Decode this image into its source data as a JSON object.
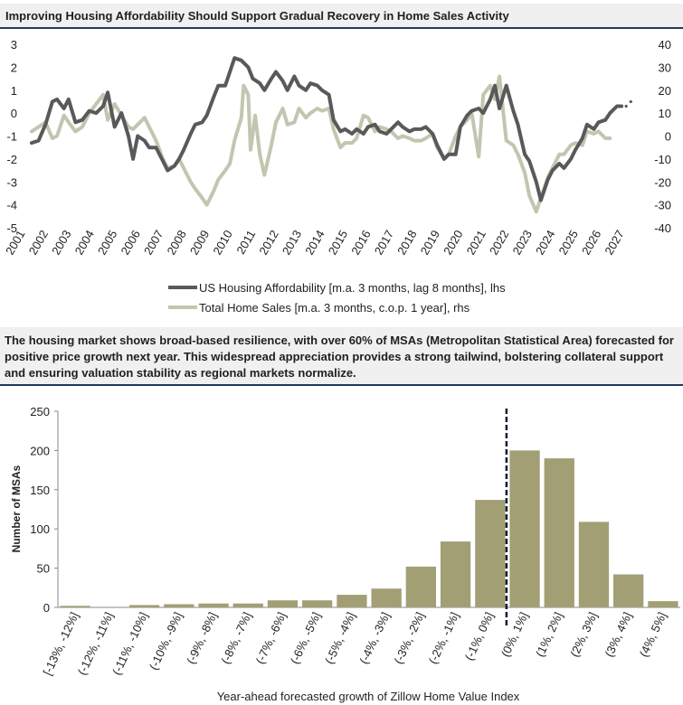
{
  "chart_data": [
    {
      "type": "line",
      "title": "Improving Housing Affordability Should Support Gradual Recovery in Home Sales Activity",
      "x_ticks": [
        "2001",
        "2002",
        "2003",
        "2004",
        "2005",
        "2006",
        "2007",
        "2008",
        "2009",
        "2010",
        "2011",
        "2012",
        "2013",
        "2014",
        "2015",
        "2016",
        "2017",
        "2018",
        "2019",
        "2020",
        "2021",
        "2022",
        "2023",
        "2024",
        "2025",
        "2026",
        "2027"
      ],
      "y_left": {
        "range": [
          -5,
          3
        ],
        "ticks": [
          "3",
          "2",
          "1",
          "0",
          "-1",
          "-2",
          "-3",
          "-4",
          "-5"
        ]
      },
      "y_right": {
        "range": [
          -40,
          40
        ],
        "ticks": [
          "40",
          "30",
          "20",
          "10",
          "0",
          "-10",
          "-20",
          "-30",
          "-40"
        ]
      },
      "legend_placement": "bottom",
      "series": [
        {
          "name": "US Housing Affordability [m.a. 3 months, lag 8 months], lhs",
          "axis": "left",
          "color": "#595959",
          "points": [
            [
              2001.0,
              -1.3
            ],
            [
              2001.3,
              -1.2
            ],
            [
              2001.6,
              -0.5
            ],
            [
              2001.9,
              0.5
            ],
            [
              2002.1,
              0.6
            ],
            [
              2002.4,
              0.2
            ],
            [
              2002.6,
              0.6
            ],
            [
              2002.9,
              -0.4
            ],
            [
              2003.2,
              -0.3
            ],
            [
              2003.5,
              0.1
            ],
            [
              2003.8,
              0.0
            ],
            [
              2004.1,
              0.3
            ],
            [
              2004.3,
              0.9
            ],
            [
              2004.6,
              -0.6
            ],
            [
              2004.9,
              0.0
            ],
            [
              2005.2,
              -1.0
            ],
            [
              2005.4,
              -2.0
            ],
            [
              2005.6,
              -1.0
            ],
            [
              2005.9,
              -1.2
            ],
            [
              2006.1,
              -1.5
            ],
            [
              2006.4,
              -1.5
            ],
            [
              2006.7,
              -2.1
            ],
            [
              2006.9,
              -2.5
            ],
            [
              2007.2,
              -2.3
            ],
            [
              2007.4,
              -2.0
            ],
            [
              2007.6,
              -1.6
            ],
            [
              2007.9,
              -0.9
            ],
            [
              2008.1,
              -0.5
            ],
            [
              2008.4,
              -0.4
            ],
            [
              2008.6,
              -0.1
            ],
            [
              2008.9,
              0.7
            ],
            [
              2009.1,
              1.2
            ],
            [
              2009.4,
              1.2
            ],
            [
              2009.6,
              1.8
            ],
            [
              2009.8,
              2.4
            ],
            [
              2010.1,
              2.3
            ],
            [
              2010.4,
              2.0
            ],
            [
              2010.6,
              1.5
            ],
            [
              2010.9,
              1.3
            ],
            [
              2011.1,
              1.0
            ],
            [
              2011.4,
              1.5
            ],
            [
              2011.6,
              1.8
            ],
            [
              2011.9,
              1.4
            ],
            [
              2012.1,
              1.0
            ],
            [
              2012.4,
              1.6
            ],
            [
              2012.6,
              1.2
            ],
            [
              2012.9,
              1.0
            ],
            [
              2013.1,
              1.3
            ],
            [
              2013.4,
              1.2
            ],
            [
              2013.6,
              1.0
            ],
            [
              2013.9,
              0.8
            ],
            [
              2014.1,
              -0.3
            ],
            [
              2014.4,
              -0.8
            ],
            [
              2014.6,
              -0.7
            ],
            [
              2014.9,
              -0.9
            ],
            [
              2015.1,
              -0.7
            ],
            [
              2015.4,
              -0.9
            ],
            [
              2015.6,
              -0.6
            ],
            [
              2015.9,
              -0.5
            ],
            [
              2016.1,
              -0.8
            ],
            [
              2016.4,
              -0.9
            ],
            [
              2016.7,
              -0.6
            ],
            [
              2016.9,
              -0.4
            ],
            [
              2017.1,
              -0.6
            ],
            [
              2017.4,
              -0.8
            ],
            [
              2017.6,
              -0.7
            ],
            [
              2017.9,
              -0.7
            ],
            [
              2018.1,
              -0.6
            ],
            [
              2018.4,
              -0.9
            ],
            [
              2018.6,
              -1.4
            ],
            [
              2018.9,
              -2.0
            ],
            [
              2019.1,
              -1.8
            ],
            [
              2019.4,
              -1.8
            ],
            [
              2019.6,
              -0.6
            ],
            [
              2019.9,
              -0.1
            ],
            [
              2020.1,
              0.1
            ],
            [
              2020.4,
              0.2
            ],
            [
              2020.6,
              0.0
            ],
            [
              2020.9,
              0.6
            ],
            [
              2021.1,
              1.2
            ],
            [
              2021.3,
              0.2
            ],
            [
              2021.6,
              1.2
            ],
            [
              2021.9,
              0.1
            ],
            [
              2022.1,
              -0.5
            ],
            [
              2022.4,
              -1.8
            ],
            [
              2022.6,
              -2.1
            ],
            [
              2022.9,
              -3.0
            ],
            [
              2023.1,
              -3.8
            ],
            [
              2023.4,
              -2.9
            ],
            [
              2023.6,
              -2.5
            ],
            [
              2023.9,
              -2.2
            ],
            [
              2024.1,
              -2.4
            ],
            [
              2024.4,
              -2.0
            ],
            [
              2024.6,
              -1.6
            ],
            [
              2024.9,
              -1.1
            ],
            [
              2025.1,
              -0.5
            ],
            [
              2025.4,
              -0.7
            ],
            [
              2025.6,
              -0.4
            ],
            [
              2025.9,
              -0.3
            ],
            [
              2026.1,
              0.0
            ],
            [
              2026.4,
              0.3
            ],
            [
              2026.6,
              0.3
            ]
          ]
        },
        {
          "name": "Total Home Sales [m.a. 3 months, c.o.p. 1 year], rhs",
          "axis": "right",
          "color": "#c2c6b0",
          "points": [
            [
              2001.0,
              2
            ],
            [
              2001.3,
              4
            ],
            [
              2001.6,
              6
            ],
            [
              2001.9,
              -1
            ],
            [
              2002.1,
              0
            ],
            [
              2002.4,
              9
            ],
            [
              2002.6,
              6
            ],
            [
              2002.9,
              2
            ],
            [
              2003.2,
              4
            ],
            [
              2003.5,
              10
            ],
            [
              2003.8,
              14
            ],
            [
              2004.1,
              18
            ],
            [
              2004.3,
              7
            ],
            [
              2004.6,
              14
            ],
            [
              2004.9,
              9
            ],
            [
              2005.2,
              4
            ],
            [
              2005.4,
              3
            ],
            [
              2005.6,
              5
            ],
            [
              2005.9,
              8
            ],
            [
              2006.1,
              4
            ],
            [
              2006.4,
              -2
            ],
            [
              2006.7,
              -10
            ],
            [
              2006.9,
              -14
            ],
            [
              2007.2,
              -13
            ],
            [
              2007.4,
              -10
            ],
            [
              2007.6,
              -14
            ],
            [
              2007.9,
              -20
            ],
            [
              2008.1,
              -23
            ],
            [
              2008.4,
              -27
            ],
            [
              2008.6,
              -30
            ],
            [
              2008.9,
              -24
            ],
            [
              2009.1,
              -19
            ],
            [
              2009.4,
              -15
            ],
            [
              2009.6,
              -12
            ],
            [
              2009.8,
              -2
            ],
            [
              2010.1,
              8
            ],
            [
              2010.2,
              22
            ],
            [
              2010.4,
              18
            ],
            [
              2010.5,
              -6
            ],
            [
              2010.7,
              9
            ],
            [
              2010.9,
              -8
            ],
            [
              2011.1,
              -17
            ],
            [
              2011.4,
              -4
            ],
            [
              2011.6,
              6
            ],
            [
              2011.9,
              12
            ],
            [
              2012.1,
              5
            ],
            [
              2012.4,
              6
            ],
            [
              2012.6,
              12
            ],
            [
              2012.9,
              8
            ],
            [
              2013.1,
              10
            ],
            [
              2013.4,
              12
            ],
            [
              2013.6,
              11
            ],
            [
              2013.9,
              12
            ],
            [
              2014.1,
              3
            ],
            [
              2014.4,
              -5
            ],
            [
              2014.6,
              -3
            ],
            [
              2014.9,
              -3
            ],
            [
              2015.1,
              -1
            ],
            [
              2015.4,
              9
            ],
            [
              2015.6,
              8
            ],
            [
              2015.9,
              2
            ],
            [
              2016.1,
              4
            ],
            [
              2016.4,
              3
            ],
            [
              2016.6,
              2
            ],
            [
              2016.9,
              -1
            ],
            [
              2017.1,
              0
            ],
            [
              2017.4,
              -1
            ],
            [
              2017.6,
              -2
            ],
            [
              2017.9,
              -2
            ],
            [
              2018.1,
              -1
            ],
            [
              2018.4,
              1
            ],
            [
              2018.6,
              -5
            ],
            [
              2018.9,
              -10
            ],
            [
              2019.1,
              -8
            ],
            [
              2019.4,
              0
            ],
            [
              2019.6,
              4
            ],
            [
              2019.9,
              7
            ],
            [
              2020.1,
              10
            ],
            [
              2020.4,
              -9
            ],
            [
              2020.6,
              18
            ],
            [
              2020.9,
              22
            ],
            [
              2021.1,
              16
            ],
            [
              2021.3,
              26
            ],
            [
              2021.6,
              -2
            ],
            [
              2021.9,
              -4
            ],
            [
              2022.1,
              -8
            ],
            [
              2022.4,
              -16
            ],
            [
              2022.6,
              -26
            ],
            [
              2022.9,
              -33
            ],
            [
              2023.1,
              -27
            ],
            [
              2023.4,
              -18
            ],
            [
              2023.6,
              -14
            ],
            [
              2023.9,
              -8
            ],
            [
              2024.1,
              -8
            ],
            [
              2024.4,
              -4
            ],
            [
              2024.6,
              -3
            ],
            [
              2024.9,
              -4
            ],
            [
              2025.1,
              2
            ],
            [
              2025.4,
              1
            ],
            [
              2025.6,
              2
            ],
            [
              2025.9,
              -1
            ],
            [
              2026.1,
              -1
            ]
          ]
        }
      ],
      "forecast_dots": [
        [
          2026.8,
          0.3
        ],
        [
          2027.0,
          0.5
        ]
      ]
    },
    {
      "type": "bar",
      "xlabel": "Year-ahead forecasted growth of Zillow Home Value Index",
      "ylabel": "Number of MSAs",
      "ylim": [
        0,
        250
      ],
      "y_ticks": [
        "0",
        "50",
        "100",
        "150",
        "200",
        "250"
      ],
      "bar_color": "#a39f75",
      "marker_after_category": 12,
      "categories": [
        "[-13%, -12%]",
        "(-12%, -11%]",
        "(-11%, -10%]",
        "(-10%, -9%]",
        "(-9%, -8%]",
        "(-8%, -7%]",
        "(-7%, -6%]",
        "(-6%, -5%]",
        "(-5%, -4%]",
        "(-4%, -3%]",
        "(-3%, -2%]",
        "(-2%, -1%]",
        "(-1%, 0%]",
        "(0%, 1%]",
        "(1%, 2%]",
        "(2%, 3%]",
        "(3%, 4%]",
        "(4%, 5%]"
      ],
      "values": [
        2,
        0,
        3,
        4,
        5,
        5,
        9,
        9,
        16,
        24,
        52,
        84,
        137,
        200,
        190,
        109,
        42,
        8
      ]
    }
  ],
  "text_box": "The housing market shows broad-based resilience, with over 60% of MSAs (Metropolitan Statistical Area) forecasted for positive price growth next year. This widespread appreciation provides a strong tailwind, bolstering collateral support and ensuring valuation stability as regional markets normalize."
}
